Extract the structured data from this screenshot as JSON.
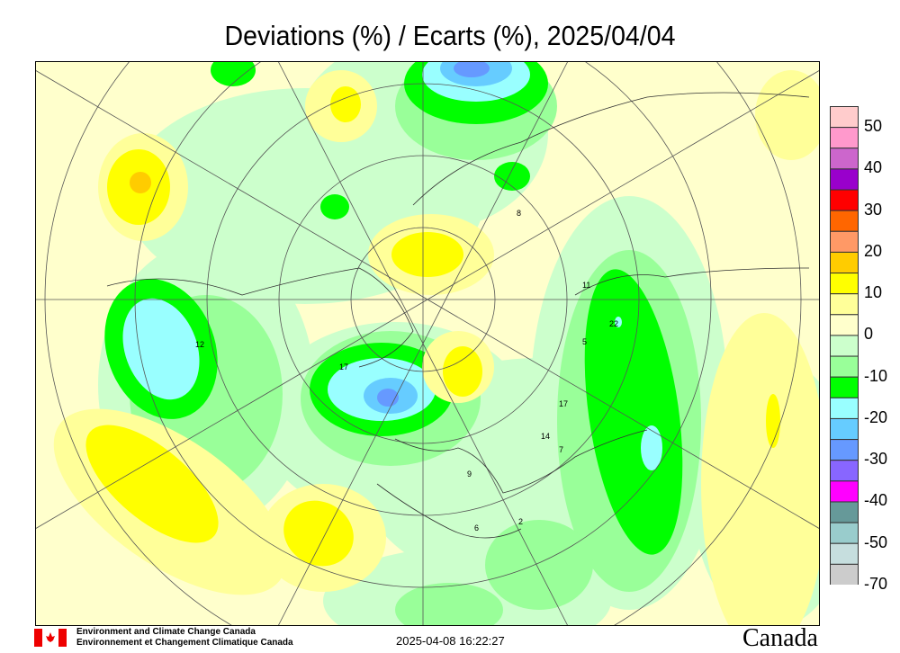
{
  "title": "Deviations (%) / Ecarts (%), 2025/04/04",
  "legend": {
    "labels": [
      "50",
      "40",
      "30",
      "20",
      "10",
      "0",
      "-10",
      "-20",
      "-30",
      "-40",
      "-50",
      "-70"
    ],
    "colors": [
      "#ffcccc",
      "#ff99cc",
      "#cc66cc",
      "#9900cc",
      "#ff0000",
      "#ff6600",
      "#ff9966",
      "#ffcc00",
      "#ffff00",
      "#ffff99",
      "#ffffcc",
      "#ccffcc",
      "#99ff99",
      "#00ff00",
      "#99ffff",
      "#66ccff",
      "#6699ff",
      "#8866ff",
      "#ff00ff",
      "#669999",
      "#99cccc",
      "#c6dede",
      "#cccccc"
    ]
  },
  "stations": [
    {
      "v": "12"
    },
    {
      "v": "22"
    },
    {
      "v": "17"
    },
    {
      "v": "14"
    },
    {
      "v": "17"
    },
    {
      "v": "11"
    },
    {
      "v": "5"
    },
    {
      "v": "7"
    },
    {
      "v": "8"
    },
    {
      "v": "9"
    },
    {
      "v": "2"
    },
    {
      "v": "6"
    }
  ],
  "footer": {
    "org_en": "Environment and Climate Change Canada",
    "org_fr": "Environnement et Changement Climatique Canada",
    "timestamp": "2025-04-08 16:22:27",
    "wordmark": "Canada"
  }
}
